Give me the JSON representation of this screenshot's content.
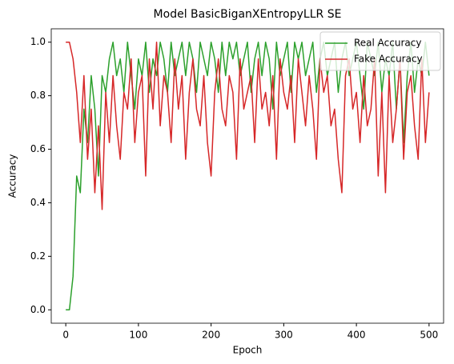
{
  "chart_data": {
    "type": "line",
    "title": "Model BasicBiganXEntropyLLR SE",
    "x_label": "Epoch",
    "y_label": "Accuracy",
    "x": [
      0,
      5,
      10,
      15,
      20,
      25,
      30,
      35,
      40,
      45,
      50,
      55,
      60,
      65,
      70,
      75,
      80,
      85,
      90,
      95,
      100,
      105,
      110,
      115,
      120,
      125,
      130,
      135,
      140,
      145,
      150,
      155,
      160,
      165,
      170,
      175,
      180,
      185,
      190,
      195,
      200,
      205,
      210,
      215,
      220,
      225,
      230,
      235,
      240,
      245,
      250,
      255,
      260,
      265,
      270,
      275,
      280,
      285,
      290,
      295,
      300,
      305,
      310,
      315,
      320,
      325,
      330,
      335,
      340,
      345,
      350,
      355,
      360,
      365,
      370,
      375,
      380,
      385,
      390,
      395,
      400,
      405,
      410,
      415,
      420,
      425,
      430,
      435,
      440,
      445,
      450,
      455,
      460,
      465,
      470,
      475,
      480,
      485,
      490,
      495,
      500
    ],
    "series": [
      {
        "name": "Real Accuracy",
        "color": "#2ca02c",
        "values": [
          0,
          0,
          0.125,
          0.5,
          0.4375,
          0.75,
          0.625,
          0.875,
          0.75,
          0.5,
          0.875,
          0.8125,
          0.9375,
          1,
          0.875,
          0.9375,
          0.8125,
          1,
          0.875,
          0.75,
          0.9375,
          0.875,
          1,
          0.8125,
          0.9375,
          0.875,
          1,
          0.9375,
          0.8125,
          1,
          0.875,
          0.9375,
          1,
          0.875,
          1,
          0.9375,
          0.8125,
          1,
          0.9375,
          0.875,
          1,
          0.9375,
          0.8125,
          1,
          0.875,
          1,
          0.9375,
          1,
          0.875,
          0.9375,
          1,
          0.8125,
          0.9375,
          1,
          0.875,
          1,
          0.9375,
          0.75,
          1,
          0.875,
          0.9375,
          1,
          0.8125,
          1,
          0.9375,
          1,
          0.875,
          0.9375,
          1,
          0.8125,
          0.9375,
          1,
          0.875,
          0.9375,
          1,
          0.8125,
          0.9375,
          1,
          0.875,
          0.9375,
          1,
          0.875,
          0.75,
          1,
          0.9375,
          0.875,
          1,
          0.8125,
          0.9375,
          0.875,
          1,
          0.75,
          0.9375,
          0.625,
          0.875,
          1,
          0.8125,
          0.9375,
          0.875,
          1,
          0.875
        ]
      },
      {
        "name": "Fake Accuracy",
        "color": "#d62728",
        "values": [
          1,
          1,
          0.9375,
          0.8125,
          0.625,
          0.875,
          0.5625,
          0.75,
          0.4375,
          0.6875,
          0.375,
          0.8125,
          0.625,
          0.875,
          0.6875,
          0.5625,
          0.8125,
          0.75,
          0.9375,
          0.625,
          0.8125,
          0.875,
          0.5,
          0.9375,
          0.75,
          1,
          0.6875,
          0.875,
          0.8125,
          0.625,
          0.9375,
          0.75,
          0.875,
          0.5625,
          0.8125,
          0.9375,
          0.75,
          0.6875,
          0.875,
          0.625,
          0.5,
          0.8125,
          0.9375,
          0.75,
          0.6875,
          0.875,
          0.8125,
          0.5625,
          0.9375,
          0.75,
          0.8125,
          0.875,
          0.625,
          0.9375,
          0.75,
          0.8125,
          0.6875,
          0.875,
          0.5625,
          0.9375,
          0.8125,
          0.75,
          0.875,
          0.625,
          0.9375,
          0.8125,
          0.6875,
          0.875,
          0.75,
          0.5625,
          0.9375,
          0.8125,
          0.875,
          0.6875,
          0.75,
          0.5625,
          0.4375,
          0.875,
          0.9375,
          0.75,
          0.8125,
          0.625,
          0.875,
          0.6875,
          0.75,
          0.9375,
          0.5,
          0.8125,
          0.4375,
          0.875,
          0.625,
          0.75,
          0.9375,
          0.5625,
          0.8125,
          0.875,
          0.6875,
          0.5625,
          0.9375,
          0.625,
          0.8125
        ]
      }
    ],
    "xlim": [
      -20,
      520
    ],
    "xticks": [
      0,
      100,
      200,
      300,
      400,
      500
    ],
    "ylim": [
      -0.05,
      1.05
    ],
    "yticks": [
      {
        "value": 0,
        "label": "0.0"
      },
      0.2,
      0.4,
      0.6,
      0.8,
      {
        "value": 1,
        "label": "1.0"
      }
    ],
    "grid": false,
    "legend": "upper right"
  }
}
